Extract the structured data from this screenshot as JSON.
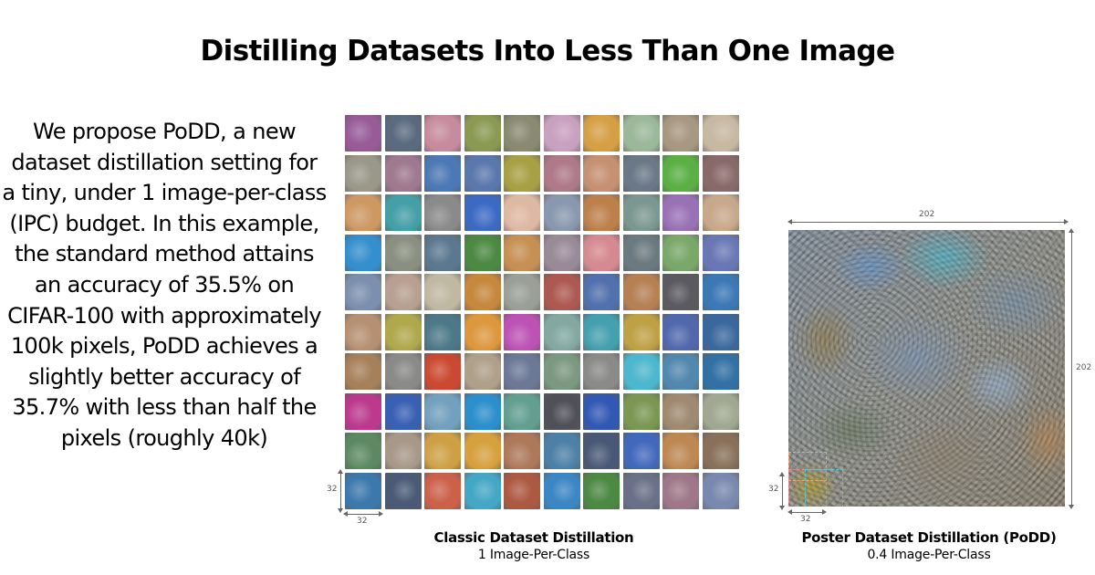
{
  "title": "Distilling Datasets Into Less Than One Image",
  "description": "We propose PoDD, a new dataset distillation setting for a tiny, under 1 image-per-class (IPC) budget. In this example, the standard method attains an accuracy of 35.5% on CIFAR-100 with approximately 100k pixels, PoDD achieves a slightly better accuracy of 35.7% with less than half the pixels (roughly 40k)",
  "classic": {
    "caption_title": "Classic Dataset Distillation",
    "caption_sub": "1 Image-Per-Class",
    "tile_width_label": "32",
    "tile_height_label": "32",
    "grid_rows": 10,
    "grid_cols": 10,
    "tile_colors": [
      [
        "#9a5a9a",
        "#5a6a80",
        "#c98a9e",
        "#8a9a50",
        "#8a8a70",
        "#c8a0c0",
        "#d8a040",
        "#9ab89a",
        "#a89880",
        "#c8b8a0"
      ],
      [
        "#9a9888",
        "#a07890",
        "#4a78b8",
        "#5a78b0",
        "#a8a040",
        "#b07888",
        "#c89070",
        "#6a7888",
        "#58b040",
        "#8a6a6a"
      ],
      [
        "#d09860",
        "#40a0a8",
        "#8a8a8a",
        "#3a6ac8",
        "#e0b8a0",
        "#8898b0",
        "#c08048",
        "#7a9890",
        "#9a70b8",
        "#c8a888"
      ],
      [
        "#3090d0",
        "#8a9080",
        "#5a7890",
        "#4a8a40",
        "#c89050",
        "#9a8a98",
        "#d88890",
        "#6a7a80",
        "#78a868",
        "#6878b8"
      ],
      [
        "#7a90b0",
        "#b8a090",
        "#c0b8a0",
        "#c88838",
        "#9aa098",
        "#b05850",
        "#5070b0",
        "#b88050",
        "#5a5a60",
        "#3878b8"
      ],
      [
        "#b89070",
        "#b0a848",
        "#4a7888",
        "#e09838",
        "#c050b8",
        "#80a8a0",
        "#40a0b0",
        "#c0a040",
        "#5068b0",
        "#3868a0"
      ],
      [
        "#a88058",
        "#8a8a88",
        "#d04830",
        "#b0a088",
        "#6a7898",
        "#7a9880",
        "#8a8a88",
        "#48b8d0",
        "#5088b0",
        "#3070a8"
      ],
      [
        "#c03890",
        "#3860b8",
        "#70a0c0",
        "#2890d0",
        "#60a090",
        "#505058",
        "#3058b8",
        "#7a9850",
        "#a08a70",
        "#a0a890"
      ],
      [
        "#5a8a60",
        "#a89888",
        "#d0a040",
        "#d8a038",
        "#b07858",
        "#4a80a8",
        "#485878",
        "#4068c0",
        "#c08850",
        "#8a7058"
      ],
      [
        "#3a78b0",
        "#4a5a78",
        "#d06048",
        "#40a8c8",
        "#b05840",
        "#3888c8",
        "#4a8a40",
        "#6a7088",
        "#a07888",
        "#7888b0"
      ]
    ]
  },
  "poster": {
    "caption_title": "Poster Dataset Distillation (PoDD)",
    "caption_sub": "0.4 Image-Per-Class",
    "width_label": "202",
    "height_label": "202",
    "patch_width_label": "32",
    "patch_height_label": "32",
    "patch_colors": [
      "#f0a870",
      "#e88898",
      "#58c8d8"
    ]
  }
}
